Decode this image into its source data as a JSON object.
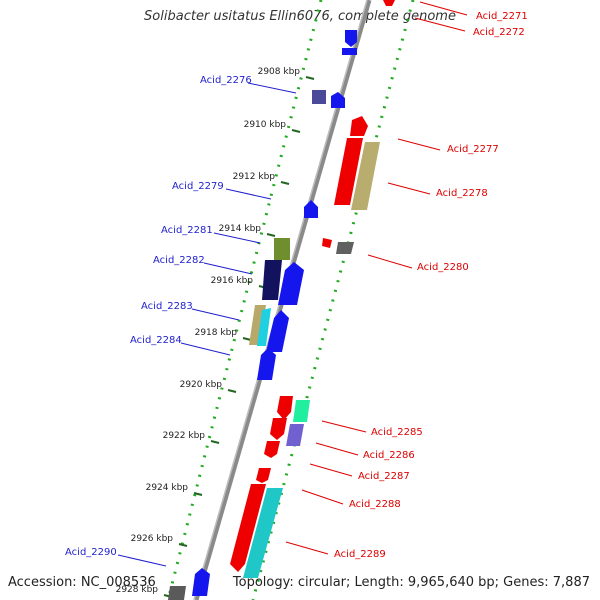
{
  "title": "Solibacter usitatus Ellin6076, complete genome",
  "accession_text": "Accession: NC_008536",
  "summary_text": "Topology: circular; Length: 9,965,640 bp; Genes: 7,887",
  "colors": {
    "label_left": "#1f1fcc",
    "label_right": "#dd0000",
    "dots": "#22aa22",
    "backbone": "#8a8a8a",
    "tick": "#226622"
  },
  "kbp_ticks": [
    "2908 kbp",
    "2910 kbp",
    "2912 kbp",
    "2914 kbp",
    "2916 kbp",
    "2918 kbp",
    "2920 kbp",
    "2922 kbp",
    "2924 kbp",
    "2926 kbp",
    "2928 kbp"
  ],
  "genes_left": [
    "Acid_2276",
    "Acid_2279",
    "Acid_2281",
    "Acid_2282",
    "Acid_2283",
    "Acid_2284",
    "Acid_2290"
  ],
  "genes_right": [
    "Acid_2271",
    "Acid_2272",
    "Acid_2277",
    "Acid_2278",
    "Acid_2280",
    "Acid_2285",
    "Acid_2286",
    "Acid_2287",
    "Acid_2288",
    "Acid_2289"
  ]
}
